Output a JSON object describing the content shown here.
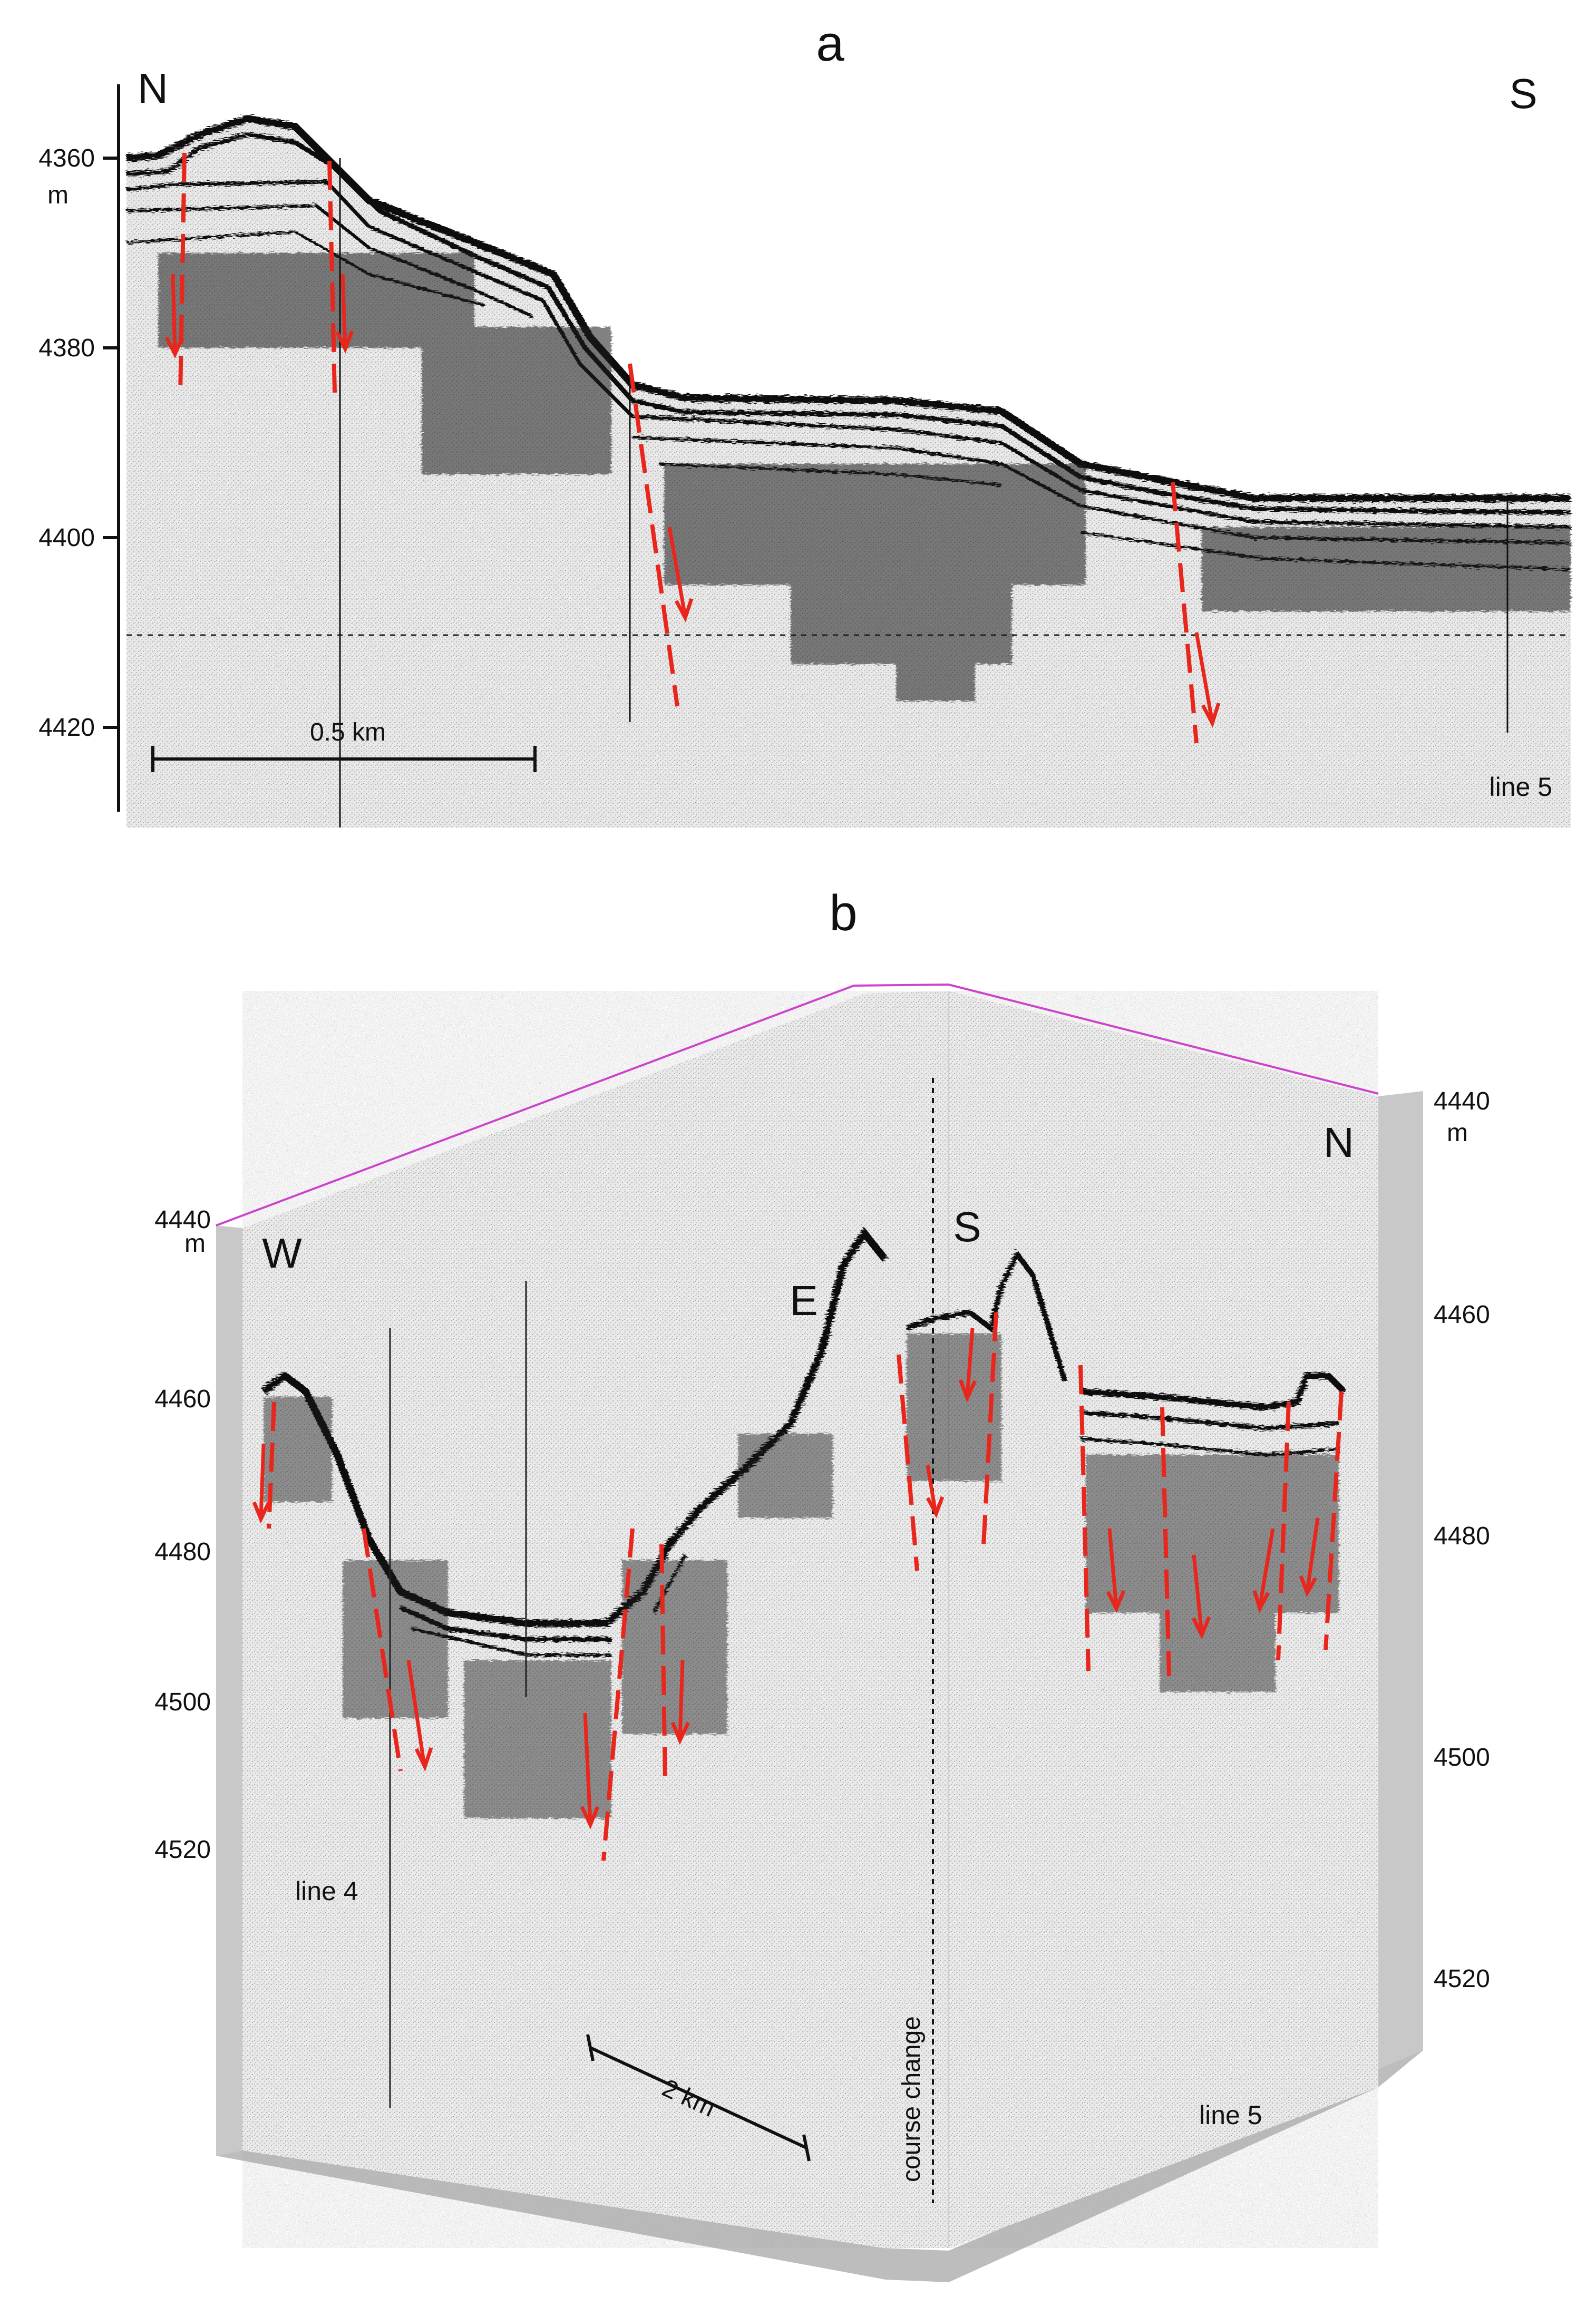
{
  "figure": {
    "panel_a": {
      "letter": "a",
      "dir_left": "N",
      "dir_right": "S",
      "depth_ticks": [
        "4360",
        "4380",
        "4400",
        "4420"
      ],
      "depth_unit": "m",
      "scale_bar": "0.5 km",
      "line_label": "line 5"
    },
    "panel_b": {
      "letter": "b",
      "dir_west": "W",
      "dir_east": "E",
      "dir_south": "S",
      "dir_north": "N",
      "left_ticks": [
        "4440",
        "4460",
        "4480",
        "4500",
        "4520"
      ],
      "left_unit": "m",
      "right_ticks": [
        "4440",
        "4460",
        "4480",
        "4500",
        "4520"
      ],
      "right_unit": "m",
      "scale_bar": "2 km",
      "course_change": "course change",
      "line_label_left": "line 4",
      "line_label_right": "line 5"
    },
    "colors": {
      "fault": "#e8261c",
      "reflector": "#111111",
      "frame_top": "#cc44cc",
      "frame_side": "#c8c8c8"
    }
  }
}
